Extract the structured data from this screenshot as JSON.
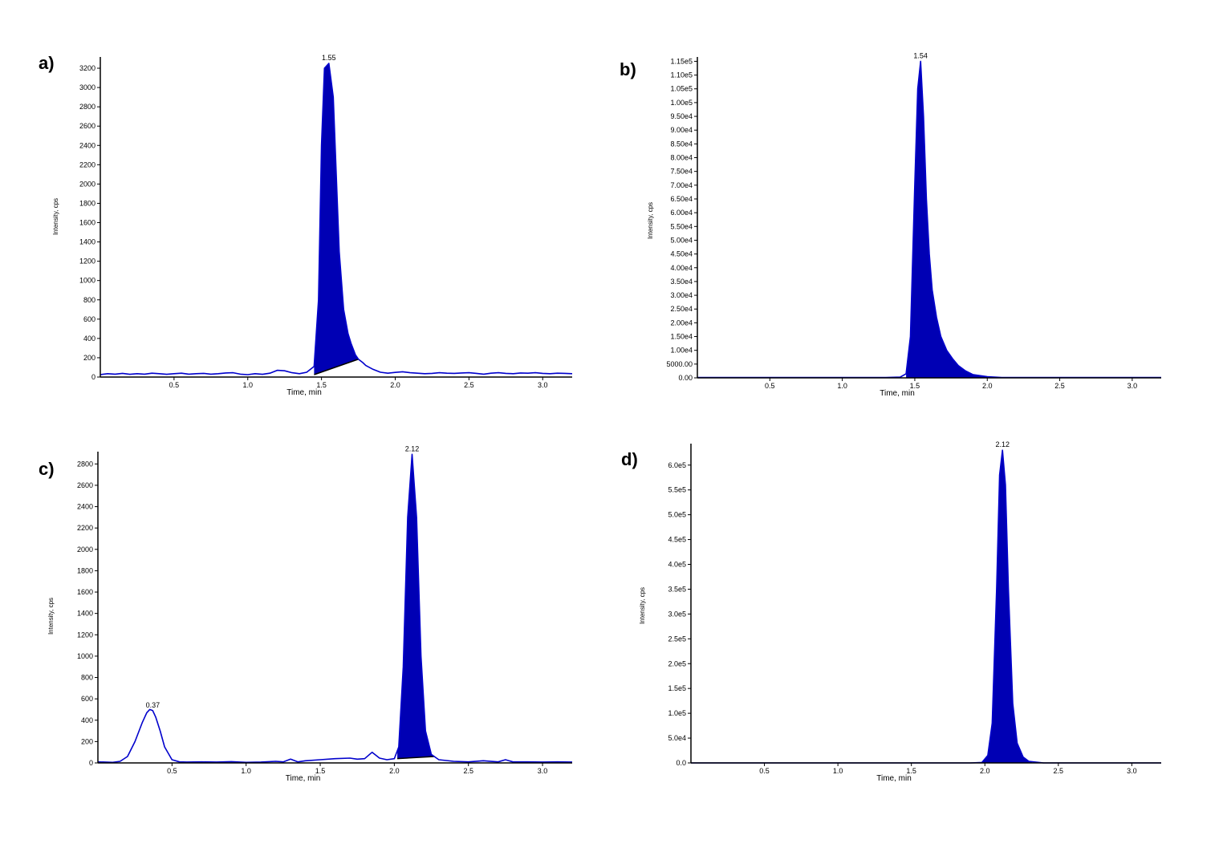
{
  "colors": {
    "trace": "#0000cc",
    "fill": "#0000b4",
    "axis": "#000000",
    "baseline": "#000000"
  },
  "chart_data": [
    {
      "type": "area",
      "panel_label": "a)",
      "xlabel": "Time, min",
      "ylabel": "Intensity, cps",
      "xlim": [
        0,
        3.2
      ],
      "ylim": [
        0,
        3300
      ],
      "xticks": [
        0.5,
        1.0,
        1.5,
        2.0,
        2.5,
        3.0
      ],
      "xtick_labels": [
        "0.5",
        "1.0",
        "1.5",
        "2.0",
        "2.5",
        "3.0"
      ],
      "yticks": [
        0,
        200,
        400,
        600,
        800,
        1000,
        1200,
        1400,
        1600,
        1800,
        2000,
        2200,
        2400,
        2600,
        2800,
        3000,
        3200
      ],
      "ytick_labels": [
        "0",
        "200",
        "400",
        "600",
        "800",
        "1000",
        "1200",
        "1400",
        "1600",
        "1800",
        "2000",
        "2200",
        "2400",
        "2600",
        "2800",
        "3000",
        "3200"
      ],
      "x": [
        0.0,
        0.05,
        0.1,
        0.15,
        0.2,
        0.25,
        0.3,
        0.35,
        0.4,
        0.45,
        0.5,
        0.55,
        0.6,
        0.65,
        0.7,
        0.75,
        0.8,
        0.85,
        0.9,
        0.95,
        1.0,
        1.05,
        1.1,
        1.15,
        1.2,
        1.25,
        1.3,
        1.35,
        1.4,
        1.45,
        1.48,
        1.5,
        1.52,
        1.55,
        1.58,
        1.6,
        1.62,
        1.65,
        1.68,
        1.7,
        1.73,
        1.75,
        1.78,
        1.8,
        1.85,
        1.9,
        1.95,
        2.0,
        2.05,
        2.1,
        2.15,
        2.2,
        2.25,
        2.3,
        2.35,
        2.4,
        2.45,
        2.5,
        2.55,
        2.6,
        2.65,
        2.7,
        2.75,
        2.8,
        2.85,
        2.9,
        2.95,
        3.0,
        3.05,
        3.1,
        3.15,
        3.2
      ],
      "y": [
        25,
        35,
        30,
        38,
        28,
        35,
        30,
        40,
        35,
        28,
        35,
        40,
        30,
        35,
        38,
        30,
        35,
        42,
        45,
        30,
        25,
        35,
        28,
        40,
        70,
        65,
        45,
        35,
        50,
        110,
        800,
        2400,
        3200,
        3250,
        2900,
        2100,
        1300,
        700,
        450,
        350,
        230,
        185,
        150,
        120,
        80,
        50,
        40,
        48,
        55,
        45,
        40,
        35,
        38,
        45,
        40,
        38,
        42,
        45,
        38,
        30,
        40,
        45,
        38,
        35,
        42,
        40,
        45,
        38,
        35,
        40,
        38,
        35
      ],
      "integration": {
        "x_start": 1.45,
        "x_end": 1.75,
        "baseline_start": 25,
        "baseline_end": 185
      },
      "peak_labels": [
        {
          "x": 1.55,
          "text": "1.55"
        }
      ]
    },
    {
      "type": "area",
      "panel_label": "b)",
      "xlabel": "Time, min",
      "ylabel": "Intensity, cps",
      "xlim": [
        0,
        3.2
      ],
      "ylim": [
        0,
        116000
      ],
      "xticks": [
        0.5,
        1.0,
        1.5,
        2.0,
        2.5,
        3.0
      ],
      "xtick_labels": [
        "0.5",
        "1.0",
        "1.5",
        "2.0",
        "2.5",
        "3.0"
      ],
      "yticks": [
        0,
        5000,
        10000,
        15000,
        20000,
        25000,
        30000,
        35000,
        40000,
        45000,
        50000,
        55000,
        60000,
        65000,
        70000,
        75000,
        80000,
        85000,
        90000,
        95000,
        100000,
        105000,
        110000,
        115000
      ],
      "ytick_labels": [
        "0.00",
        "5000.00",
        "1.00e4",
        "1.50e4",
        "2.00e4",
        "2.50e4",
        "3.00e4",
        "3.50e4",
        "4.00e4",
        "4.50e4",
        "5.00e4",
        "5.50e4",
        "6.00e4",
        "6.50e4",
        "7.00e4",
        "7.50e4",
        "8.00e4",
        "8.50e4",
        "9.00e4",
        "9.50e4",
        "1.00e5",
        "1.05e5",
        "1.10e5",
        "1.15e5"
      ],
      "x": [
        0.0,
        0.5,
        1.0,
        1.3,
        1.4,
        1.44,
        1.47,
        1.5,
        1.52,
        1.54,
        1.56,
        1.58,
        1.6,
        1.62,
        1.65,
        1.68,
        1.72,
        1.76,
        1.8,
        1.85,
        1.9,
        2.0,
        2.1,
        2.5,
        3.0,
        3.2
      ],
      "y": [
        150,
        120,
        130,
        150,
        300,
        1500,
        15000,
        70000,
        105000,
        115000,
        95000,
        65000,
        45000,
        32000,
        22000,
        15000,
        10000,
        7000,
        4500,
        2500,
        1200,
        400,
        150,
        120,
        120,
        120
      ],
      "integration": {
        "x_start": 1.44,
        "x_end": 2.05,
        "baseline_start": 0,
        "baseline_end": 0
      },
      "peak_labels": [
        {
          "x": 1.54,
          "text": "1.54"
        }
      ]
    },
    {
      "type": "area",
      "panel_label": "c)",
      "xlabel": "Time, min",
      "ylabel": "Intensity, cps",
      "xlim": [
        0,
        3.2
      ],
      "ylim": [
        0,
        2900
      ],
      "xticks": [
        0.5,
        1.0,
        1.5,
        2.0,
        2.5,
        3.0
      ],
      "xtick_labels": [
        "0.5",
        "1.0",
        "1.5",
        "2.0",
        "2.5",
        "3.0"
      ],
      "yticks": [
        0,
        200,
        400,
        600,
        800,
        1000,
        1200,
        1400,
        1600,
        1800,
        2000,
        2200,
        2400,
        2600,
        2800
      ],
      "ytick_labels": [
        "0",
        "200",
        "400",
        "600",
        "800",
        "1000",
        "1200",
        "1400",
        "1600",
        "1800",
        "2000",
        "2200",
        "2400",
        "2600",
        "2800"
      ],
      "x": [
        0.0,
        0.1,
        0.15,
        0.2,
        0.25,
        0.3,
        0.33,
        0.35,
        0.37,
        0.39,
        0.42,
        0.45,
        0.5,
        0.55,
        0.6,
        0.7,
        0.8,
        0.9,
        1.0,
        1.1,
        1.2,
        1.25,
        1.3,
        1.35,
        1.4,
        1.5,
        1.6,
        1.7,
        1.75,
        1.8,
        1.85,
        1.9,
        1.95,
        2.0,
        2.03,
        2.06,
        2.09,
        2.12,
        2.15,
        2.18,
        2.21,
        2.25,
        2.3,
        2.4,
        2.5,
        2.6,
        2.7,
        2.75,
        2.8,
        2.9,
        3.0,
        3.1,
        3.2
      ],
      "y": [
        10,
        5,
        15,
        60,
        200,
        380,
        470,
        500,
        490,
        430,
        300,
        150,
        30,
        10,
        8,
        10,
        8,
        12,
        5,
        8,
        15,
        10,
        35,
        10,
        20,
        30,
        40,
        45,
        35,
        40,
        100,
        45,
        30,
        40,
        150,
        900,
        2300,
        2890,
        2300,
        1000,
        300,
        80,
        30,
        15,
        10,
        20,
        10,
        30,
        10,
        10,
        8,
        10,
        8
      ],
      "integration": {
        "x_start": 2.02,
        "x_end": 2.27,
        "baseline_start": 40,
        "baseline_end": 60
      },
      "peak_labels": [
        {
          "x": 2.12,
          "text": "2.12"
        },
        {
          "x": 0.37,
          "text": "0.37"
        }
      ]
    },
    {
      "type": "area",
      "panel_label": "d)",
      "xlabel": "Time, min",
      "ylabel": "Intensity, cps",
      "xlim": [
        0,
        3.2
      ],
      "ylim": [
        0,
        640000
      ],
      "xticks": [
        0.5,
        1.0,
        1.5,
        2.0,
        2.5,
        3.0
      ],
      "xtick_labels": [
        "0.5",
        "1.0",
        "1.5",
        "2.0",
        "2.5",
        "3.0"
      ],
      "yticks": [
        0,
        50000,
        100000,
        150000,
        200000,
        250000,
        300000,
        350000,
        400000,
        450000,
        500000,
        550000,
        600000
      ],
      "ytick_labels": [
        "0.0",
        "5.0e4",
        "1.0e5",
        "1.5e5",
        "2.0e5",
        "2.5e5",
        "3.0e5",
        "3.5e5",
        "4.0e5",
        "4.5e5",
        "5.0e5",
        "5.5e5",
        "6.0e5"
      ],
      "x": [
        0.0,
        0.5,
        1.0,
        1.5,
        1.9,
        1.98,
        2.02,
        2.05,
        2.08,
        2.1,
        2.12,
        2.14,
        2.16,
        2.19,
        2.22,
        2.26,
        2.3,
        2.4,
        3.0,
        3.2
      ],
      "y": [
        0,
        0,
        0,
        0,
        0,
        1000,
        15000,
        80000,
        350000,
        580000,
        630000,
        560000,
        350000,
        120000,
        40000,
        12000,
        3000,
        0,
        0,
        0
      ],
      "integration": {
        "x_start": 1.98,
        "x_end": 2.32,
        "baseline_start": 0,
        "baseline_end": 0
      },
      "peak_labels": [
        {
          "x": 2.12,
          "text": "2.12"
        }
      ]
    }
  ]
}
